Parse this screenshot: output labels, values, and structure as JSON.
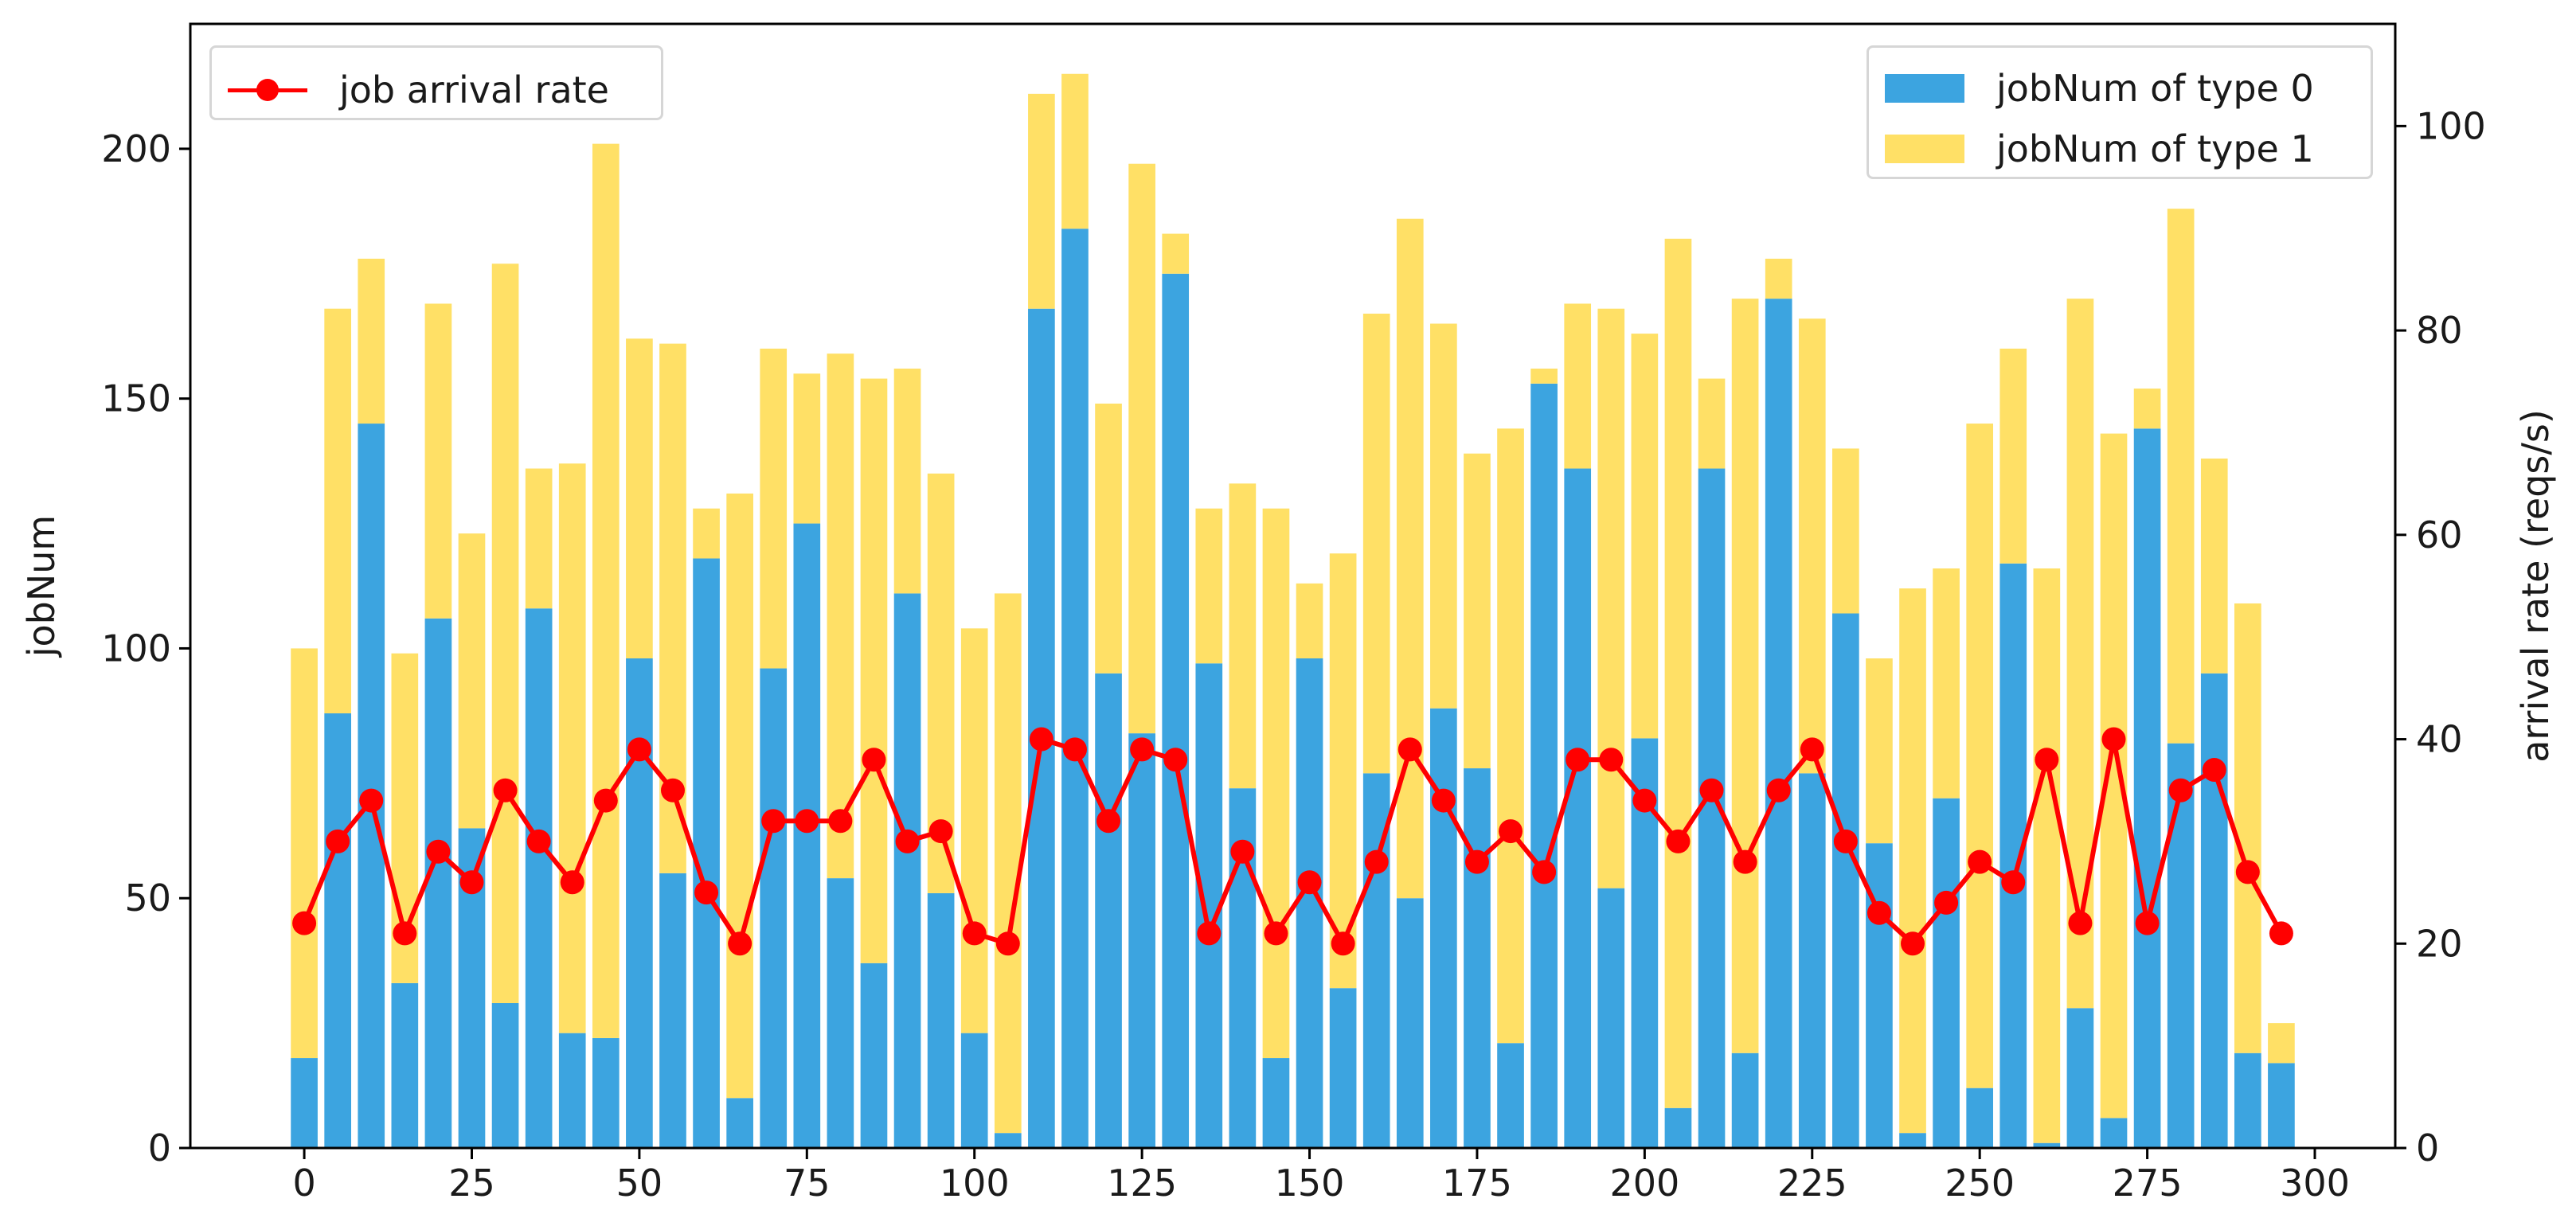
{
  "chart_data": {
    "type": "bar",
    "stacked": true,
    "secondary_type": "line",
    "x": [
      0,
      5,
      10,
      15,
      20,
      25,
      30,
      35,
      40,
      45,
      50,
      55,
      60,
      65,
      70,
      75,
      80,
      85,
      90,
      95,
      100,
      105,
      110,
      115,
      120,
      125,
      130,
      135,
      140,
      145,
      150,
      155,
      160,
      165,
      170,
      175,
      180,
      185,
      190,
      195,
      200,
      205,
      210,
      215,
      220,
      225,
      230,
      235,
      240,
      245,
      250,
      255,
      260,
      265,
      270,
      275,
      280,
      285,
      290,
      295
    ],
    "series": [
      {
        "name": "jobNum of type 0",
        "axis": "left",
        "color": "#3ca4e0",
        "values": [
          18,
          87,
          145,
          33,
          106,
          64,
          29,
          108,
          23,
          22,
          98,
          55,
          118,
          10,
          96,
          125,
          54,
          37,
          111,
          51,
          23,
          3,
          168,
          184,
          95,
          83,
          175,
          97,
          72,
          18,
          98,
          32,
          75,
          50,
          88,
          76,
          21,
          153,
          136,
          52,
          82,
          8,
          136,
          19,
          170,
          75,
          107,
          61,
          3,
          70,
          12,
          117,
          1,
          28,
          6,
          144,
          81,
          95,
          19,
          17
        ]
      },
      {
        "name": "jobNum of type 1",
        "axis": "left",
        "color": "#ffe066",
        "values": [
          82,
          81,
          33,
          66,
          63,
          59,
          148,
          28,
          114,
          179,
          64,
          106,
          10,
          121,
          64,
          30,
          105,
          117,
          45,
          84,
          81,
          108,
          43,
          31,
          54,
          114,
          8,
          31,
          61,
          110,
          15,
          87,
          92,
          136,
          77,
          63,
          123,
          3,
          33,
          116,
          81,
          174,
          18,
          151,
          8,
          91,
          33,
          37,
          109,
          46,
          133,
          43,
          115,
          142,
          137,
          8,
          107,
          43,
          90,
          8
        ]
      },
      {
        "name": "job arrival rate",
        "axis": "right",
        "type": "line",
        "color": "#ff0000",
        "values": [
          22,
          30,
          34,
          21,
          29,
          26,
          35,
          30,
          26,
          34,
          39,
          35,
          25,
          20,
          32,
          32,
          32,
          38,
          30,
          31,
          21,
          20,
          40,
          39,
          32,
          39,
          38,
          21,
          29,
          21,
          26,
          20,
          28,
          39,
          34,
          28,
          31,
          27,
          38,
          38,
          34,
          30,
          35,
          28,
          35,
          39,
          30,
          23,
          20,
          24,
          28,
          26,
          38,
          22,
          40,
          22,
          35,
          37,
          27,
          21
        ]
      }
    ],
    "xlabel": "",
    "ylabel": "jobNum",
    "y2label": "arrival rate (reqs/s)",
    "xlim": [
      -17,
      312
    ],
    "ylim": [
      0,
      225
    ],
    "y2lim": [
      0,
      110
    ],
    "xticks": [
      0,
      25,
      50,
      75,
      100,
      125,
      150,
      175,
      200,
      225,
      250,
      275,
      300
    ],
    "yticks": [
      0,
      50,
      100,
      150,
      200
    ],
    "y2ticks": [
      0,
      20,
      40,
      60,
      80,
      100
    ],
    "grid": false,
    "legend_bars_position": "top-right",
    "legend_line_position": "top-left"
  }
}
